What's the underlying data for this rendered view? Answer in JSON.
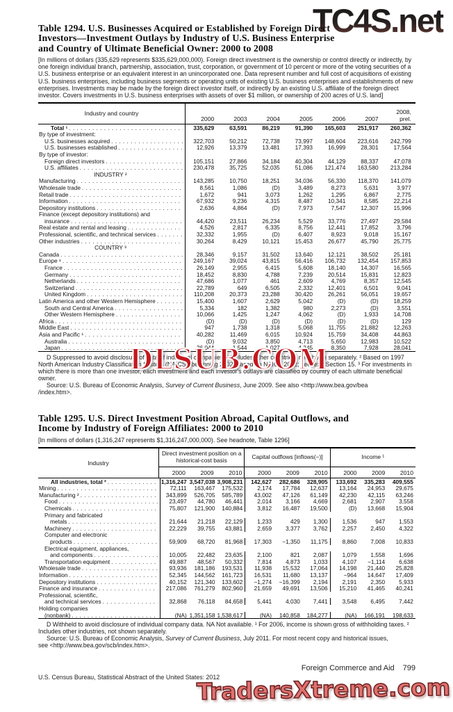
{
  "watermarks": {
    "top": "TC4S.net",
    "middle": "DLSUB.COM",
    "bottom": "TradersXtreme.com"
  },
  "table1294": {
    "title": "Table 1294. U.S. Businesses Acquired or Established by Foreign Direct\nInvestors—Investment Outlays by Industry of U.S. Business Enterprise\nand Country of Ultimate Beneficial Owner: 2000 to 2008",
    "headnote": "[In millions of dollars (335,629 represents $335,629,000,000). Foreign direct investment is the ownership or control directly or indirectly, by one foreign individual branch, partnership, association, trust, corporation, or government of 10 percent or more of the voting securities of a U.S. business enterprise or an equivalent interest in an unincorporated one. Data represent number and full cost of acquisitions of existing U.S. business enterprises, including business segments or operating units of existing U.S. business enterprises and establishments of new enterprises. Investments may be made by the foreign direct investor itself, or indirectly by an existing U.S. affiliate of the foreign direct investor. Covers investments in U.S. business enterprises with assets of over $1 million, or ownership of 200 acres of U.S. land]",
    "stub_header": "Industry and country",
    "columns": [
      "2000",
      "2003",
      "2004",
      "2005",
      "2006",
      "2007",
      "2008,\nprel."
    ],
    "rows": [
      {
        "label": "Total ¹",
        "style": "total",
        "values": [
          "335,629",
          "63,591",
          "86,219",
          "91,390",
          "165,603",
          "251,917",
          "260,362"
        ]
      },
      {
        "label": "By type of investment:",
        "style": "sidehead"
      },
      {
        "label": "U.S. businesses acquired",
        "style": "item1",
        "values": [
          "322,703",
          "50,212",
          "72,738",
          "73,997",
          "148,604",
          "223,616",
          "242,799"
        ]
      },
      {
        "label": "U.S. businesses established",
        "style": "item1",
        "values": [
          "12,926",
          "13,379",
          "13,481",
          "17,393",
          "16,999",
          "28,301",
          "17,564"
        ]
      },
      {
        "label": "By type of investor:",
        "style": "sidehead"
      },
      {
        "label": "Foreign direct investors",
        "style": "item1",
        "values": [
          "105,151",
          "27,866",
          "34,184",
          "40,304",
          "44,129",
          "88,337",
          "47,078"
        ]
      },
      {
        "label": "U.S. affiliates",
        "style": "item1",
        "values": [
          "230,478",
          "35,725",
          "52,035",
          "51,086",
          "121,474",
          "163,580",
          "213,284"
        ]
      },
      {
        "label": "INDUSTRY ²",
        "style": "center"
      },
      {
        "label": "Manufacturing",
        "style": "item",
        "values": [
          "143,285",
          "10,750",
          "18,251",
          "34,036",
          "56,330",
          "118,370",
          "141,079"
        ]
      },
      {
        "label": "Wholesale trade",
        "style": "item",
        "values": [
          "8,561",
          "1,086",
          "(D)",
          "3,489",
          "8,273",
          "5,631",
          "3,977"
        ]
      },
      {
        "label": "Retail trade",
        "style": "item",
        "values": [
          "1,672",
          "941",
          "3,073",
          "1,262",
          "1,295",
          "6,867",
          "2,775"
        ]
      },
      {
        "label": "Information",
        "style": "item",
        "values": [
          "67,932",
          "9,236",
          "4,315",
          "8,487",
          "10,341",
          "8,585",
          "22,214"
        ]
      },
      {
        "label": "Depository institutions",
        "style": "item",
        "values": [
          "2,636",
          "4,864",
          "(D)",
          "7,973",
          "7,547",
          "12,307",
          "15,996"
        ]
      },
      {
        "label": "Finance (except depository institutions) and",
        "style": "wrap"
      },
      {
        "label": "insurance",
        "style": "item1",
        "values": [
          "44,420",
          "23,511",
          "26,234",
          "5,529",
          "33,776",
          "27,497",
          "29,584"
        ]
      },
      {
        "label": "Real estate and rental and leasing",
        "style": "item",
        "values": [
          "4,526",
          "2,817",
          "6,335",
          "8,756",
          "12,441",
          "17,852",
          "3,796"
        ]
      },
      {
        "label": "Professional, scientific, and technical services",
        "style": "item",
        "values": [
          "32,332",
          "1,955",
          "(D)",
          "6,407",
          "8,923",
          "9,018",
          "15,167"
        ]
      },
      {
        "label": "Other industries",
        "style": "item",
        "values": [
          "30,264",
          "8,429",
          "10,121",
          "15,453",
          "26,677",
          "45,790",
          "25,775"
        ]
      },
      {
        "label": "COUNTRY ³",
        "style": "center"
      },
      {
        "label": "Canada",
        "style": "item",
        "values": [
          "28,346",
          "9,157",
          "31,502",
          "13,640",
          "12,121",
          "38,502",
          "25,181"
        ]
      },
      {
        "label": "Europe ¹",
        "style": "item",
        "values": [
          "249,167",
          "39,024",
          "43,815",
          "56,416",
          "106,732",
          "132,454",
          "157,853"
        ]
      },
      {
        "label": "France",
        "style": "item1",
        "values": [
          "26,149",
          "2,955",
          "6,415",
          "5,608",
          "18,140",
          "14,307",
          "16,565"
        ]
      },
      {
        "label": "Germany",
        "style": "item1",
        "values": [
          "18,452",
          "8,830",
          "4,788",
          "7,239",
          "20,514",
          "15,831",
          "12,823"
        ]
      },
      {
        "label": "Netherlands",
        "style": "item1",
        "values": [
          "47,686",
          "1,077",
          "461",
          "2,609",
          "4,769",
          "8,357",
          "12,545"
        ]
      },
      {
        "label": "Switzerland",
        "style": "item1",
        "values": [
          "22,789",
          "649",
          "6,505",
          "2,332",
          "12,401",
          "6,501",
          "9,041"
        ]
      },
      {
        "label": "United Kingdom",
        "style": "item1",
        "values": [
          "110,208",
          "20,373",
          "23,288",
          "30,420",
          "26,261",
          "56,051",
          "19,657"
        ]
      },
      {
        "label": "Latin America and other Western Hemisphere",
        "style": "item",
        "values": [
          "15,400",
          "1,607",
          "2,629",
          "5,042",
          "(D)",
          "(D)",
          "18,259"
        ]
      },
      {
        "label": "South and Central America",
        "style": "item1",
        "values": [
          "5,334",
          "182",
          "1,382",
          "980",
          "2,273",
          "(D)",
          "3,551"
        ]
      },
      {
        "label": "Other Western Hemisphere",
        "style": "item1",
        "values": [
          "10,066",
          "1,425",
          "1,247",
          "4,062",
          "(D)",
          "1,933",
          "14,708"
        ]
      },
      {
        "label": "Africa",
        "style": "item",
        "values": [
          "(D)",
          "(D)",
          "(D)",
          "(D)",
          "(D)",
          "(D)",
          "129"
        ]
      },
      {
        "label": "Middle East",
        "style": "item",
        "values": [
          "947",
          "1,738",
          "1,318",
          "5,068",
          "11,755",
          "21,882",
          "12,263"
        ]
      },
      {
        "label": "Asia and Pacific ¹",
        "style": "item",
        "values": [
          "40,282",
          "11,469",
          "6,015",
          "10,924",
          "15,759",
          "34,408",
          "44,863"
        ]
      },
      {
        "label": "Australia",
        "style": "item1",
        "values": [
          "(D)",
          "9,032",
          "3,850",
          "4,713",
          "5,650",
          "12,983",
          "10,522"
        ]
      },
      {
        "label": "Japan",
        "style": "item1",
        "values": [
          "26,044",
          "1,544",
          "1,027",
          "4,245",
          "8,350",
          "7,928",
          "28,041"
        ]
      }
    ],
    "footnote": "D Suppressed to avoid disclosure of data of individual companies. ¹ Includes other countries, not shown separately. ² Based on 1997 North American Industry Classification System (NAICS); beginning 2002, based on NAICS 2002; see text, Section 15. ³ For investments in which there is more than one investor, each investment and each investor's outlays are classified by country of each ultimate beneficial owner.",
    "source": {
      "prefix": "Source: U.S. Bureau of Economic Analysis, ",
      "italic": "Survey of Current Business",
      "suffix": ", June 2009. See also <http://www.bea.gov/bea\n/index.htm>."
    }
  },
  "table1295": {
    "title": "Table 1295. U.S. Direct Investment Position Abroad, Capital Outflows, and\nIncome by Industry of Foreign Affiliates: 2000 to 2010",
    "headnote": "[In millions of dollars (1,316,247 represents $1,316,247,000,000). See headnote, Table 1296]",
    "stub_header": "Industry",
    "groups": [
      {
        "label": "Direct investment position on a\nhistorical-cost basis",
        "columns": [
          "2000",
          "2009",
          "2010"
        ]
      },
      {
        "label": "Capital outflows [inflows(−)]",
        "columns": [
          "2000",
          "2009",
          "2010"
        ]
      },
      {
        "label": "Income ¹",
        "columns": [
          "2000",
          "2009",
          "2010"
        ]
      }
    ],
    "rows": [
      {
        "label": "All industries, total ²",
        "style": "total",
        "values": [
          "1,316,247",
          "3,547,038",
          "3,908,231",
          "142,627",
          "282,686",
          "328,905",
          "133,692",
          "335,283",
          "409,555"
        ]
      },
      {
        "label": "Mining",
        "style": "item",
        "values": [
          "72,111",
          "163,467",
          "175,532",
          "2,174",
          "17,784",
          "12,637",
          "13,164",
          "24,953",
          "29,675"
        ]
      },
      {
        "label": "Manufacturing ²",
        "style": "item",
        "values": [
          "343,899",
          "526,705",
          "585,789",
          "43,002",
          "47,126",
          "61,149",
          "42,230",
          "42,115",
          "63,246"
        ]
      },
      {
        "label": "Food",
        "style": "item1",
        "values": [
          "23,497",
          "44,780",
          "46,441",
          "2,014",
          "3,166",
          "4,669",
          "2,681",
          "2,907",
          "3,558"
        ]
      },
      {
        "label": "Chemicals",
        "style": "item1",
        "values": [
          "75,807",
          "121,900",
          "140,884",
          "3,812",
          "16,487",
          "19,500",
          "(D)",
          "13,668",
          "15,904"
        ]
      },
      {
        "label": "Primary and fabricated",
        "style": "wrap1"
      },
      {
        "label": "metals",
        "style": "item2",
        "values": [
          "21,644",
          "21,218",
          "22,129",
          "1,233",
          "429",
          "1,300",
          "1,536",
          "947",
          "1,553"
        ]
      },
      {
        "label": "Machinery",
        "style": "item1",
        "values": [
          "22,229",
          "39,755",
          "43,881",
          "2,659",
          "3,377",
          "3,762",
          "2,257",
          "2,450",
          "4,322"
        ]
      },
      {
        "label": "Computer and electronic",
        "style": "wrap1"
      },
      {
        "label": "products",
        "style": "item2",
        "values": [
          "59,909",
          "68,720",
          "81,968",
          "17,303",
          "−1,350",
          "11,175",
          "8,860",
          "7,008",
          "10,833"
        ]
      },
      {
        "label": "Electrical equipment, appliances,",
        "style": "wrap1"
      },
      {
        "label": "and components",
        "style": "item2",
        "values": [
          "10,005",
          "22,482",
          "23,635",
          "2,100",
          "821",
          "2,087",
          "1,079",
          "1,558",
          "1,696"
        ]
      },
      {
        "label": "Transportation equipment",
        "style": "item1",
        "values": [
          "49,887",
          "48,567",
          "50,332",
          "7,814",
          "4,873",
          "1,033",
          "4,107",
          "−1,114",
          "6,638"
        ]
      },
      {
        "label": "Wholesale trade",
        "style": "item",
        "values": [
          "93,936",
          "181,186",
          "193,531",
          "11,938",
          "15,532",
          "17,064",
          "14,198",
          "21,440",
          "25,828"
        ]
      },
      {
        "label": "Information",
        "style": "item",
        "values": [
          "52,345",
          "144,562",
          "161,723",
          "16,531",
          "11,680",
          "13,137",
          "−964",
          "14,647",
          "17,409"
        ]
      },
      {
        "label": "Depository institutions",
        "style": "item",
        "values": [
          "40,152",
          "121,340",
          "133,602",
          "−1,274",
          "−16,399",
          "2,194",
          "2,191",
          "2,350",
          "5,933"
        ]
      },
      {
        "label": "Finance and insurance",
        "style": "item",
        "values": [
          "217,086",
          "761,279",
          "802,960",
          "21,659",
          "49,691",
          "13,506",
          "15,210",
          "41,465",
          "40,241"
        ]
      },
      {
        "label": "Professional, scientific,",
        "style": "wrap"
      },
      {
        "label": "and technical services",
        "style": "item1",
        "values": [
          "32,868",
          "76,118",
          "84,658",
          "5,441",
          "4,030",
          "7,441",
          "3,548",
          "6,495",
          "7,442"
        ]
      },
      {
        "label": "Holding companies",
        "style": "wrap"
      },
      {
        "label": "(nonbank)",
        "style": "item1",
        "values": [
          "(NA)",
          "1,351,158",
          "1,538,617",
          "(NA)",
          "140,858",
          "184,277",
          "(NA)",
          "166,191",
          "198,633"
        ]
      }
    ],
    "footnote": "D Withheld to avoid disclosure of individual company data. NA Not available. ¹ For 2006, income is shown gross of withholding taxes. ² Includes other industries, not shown separately.",
    "source": {
      "prefix": "Source: U.S. Bureau of Economic Analysis, ",
      "italic": "Survey of Current Business",
      "suffix": ", July 2011. For most recent copy and historical issues,\nsee <http://www.bea.gov/scb/index.htm>."
    }
  },
  "footer": {
    "section_title": "Foreign Commerce and Aid",
    "page_number": "799",
    "credit": "U.S. Census Bureau, Statistical Abstract of the United States: 2012"
  }
}
